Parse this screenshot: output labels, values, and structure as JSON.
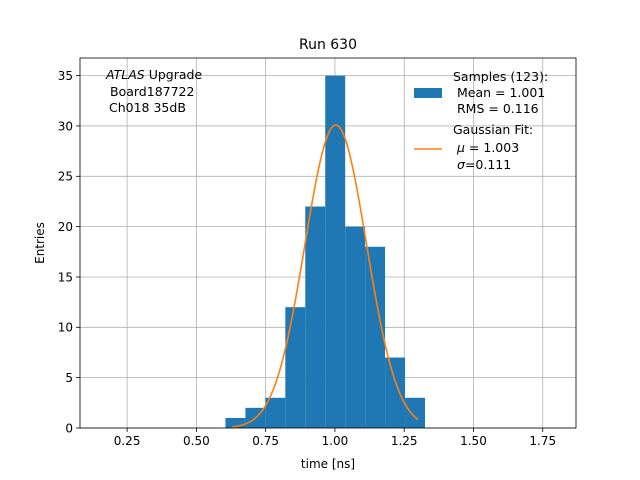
{
  "chart_data": {
    "type": "bar",
    "title": "Run 630",
    "xlabel": "time [ns]",
    "ylabel": "Entries",
    "xlim": [
      0.08,
      1.87
    ],
    "ylim": [
      0,
      36.75
    ],
    "grid": true,
    "xticks": [
      0.25,
      0.5,
      0.75,
      1.0,
      1.25,
      1.5,
      1.75
    ],
    "xtick_labels": [
      "0.25",
      "0.50",
      "0.75",
      "1.00",
      "1.25",
      "1.50",
      "1.75"
    ],
    "yticks": [
      0,
      5,
      10,
      15,
      20,
      25,
      30,
      35
    ],
    "ytick_labels": [
      "0",
      "5",
      "10",
      "15",
      "20",
      "25",
      "30",
      "35"
    ],
    "bar_color": "#1f77b4",
    "fit_color": "#ff7f0e",
    "bins": [
      {
        "left": 0.605,
        "right": 0.677,
        "value": 1
      },
      {
        "left": 0.677,
        "right": 0.749,
        "value": 2
      },
      {
        "left": 0.749,
        "right": 0.821,
        "value": 3
      },
      {
        "left": 0.821,
        "right": 0.893,
        "value": 12
      },
      {
        "left": 0.893,
        "right": 0.965,
        "value": 22
      },
      {
        "left": 0.965,
        "right": 1.037,
        "value": 35
      },
      {
        "left": 1.037,
        "right": 1.109,
        "value": 20
      },
      {
        "left": 1.109,
        "right": 1.181,
        "value": 18
      },
      {
        "left": 1.181,
        "right": 1.253,
        "value": 7
      },
      {
        "left": 1.253,
        "right": 1.325,
        "value": 3
      }
    ],
    "fit": {
      "type": "gaussian",
      "amplitude": 30.1,
      "mu": 1.003,
      "sigma": 0.111,
      "x_range": [
        0.63,
        1.3
      ]
    },
    "annotation": {
      "line1_italic": "ATLAS",
      "line1_rest": " Upgrade",
      "line2": "Board187722",
      "line3": "Ch018 35dB"
    },
    "legend": {
      "position": "upper right",
      "hist_header": "Samples (123):",
      "hist_line2": "Mean = 1.001",
      "hist_line3": "RMS = 0.116",
      "fit_header": "Gaussian Fit:",
      "fit_mu_symbol": "μ",
      "fit_mu_value": " = 1.003",
      "fit_sigma_symbol": "σ",
      "fit_sigma_value": "=0.111"
    }
  }
}
